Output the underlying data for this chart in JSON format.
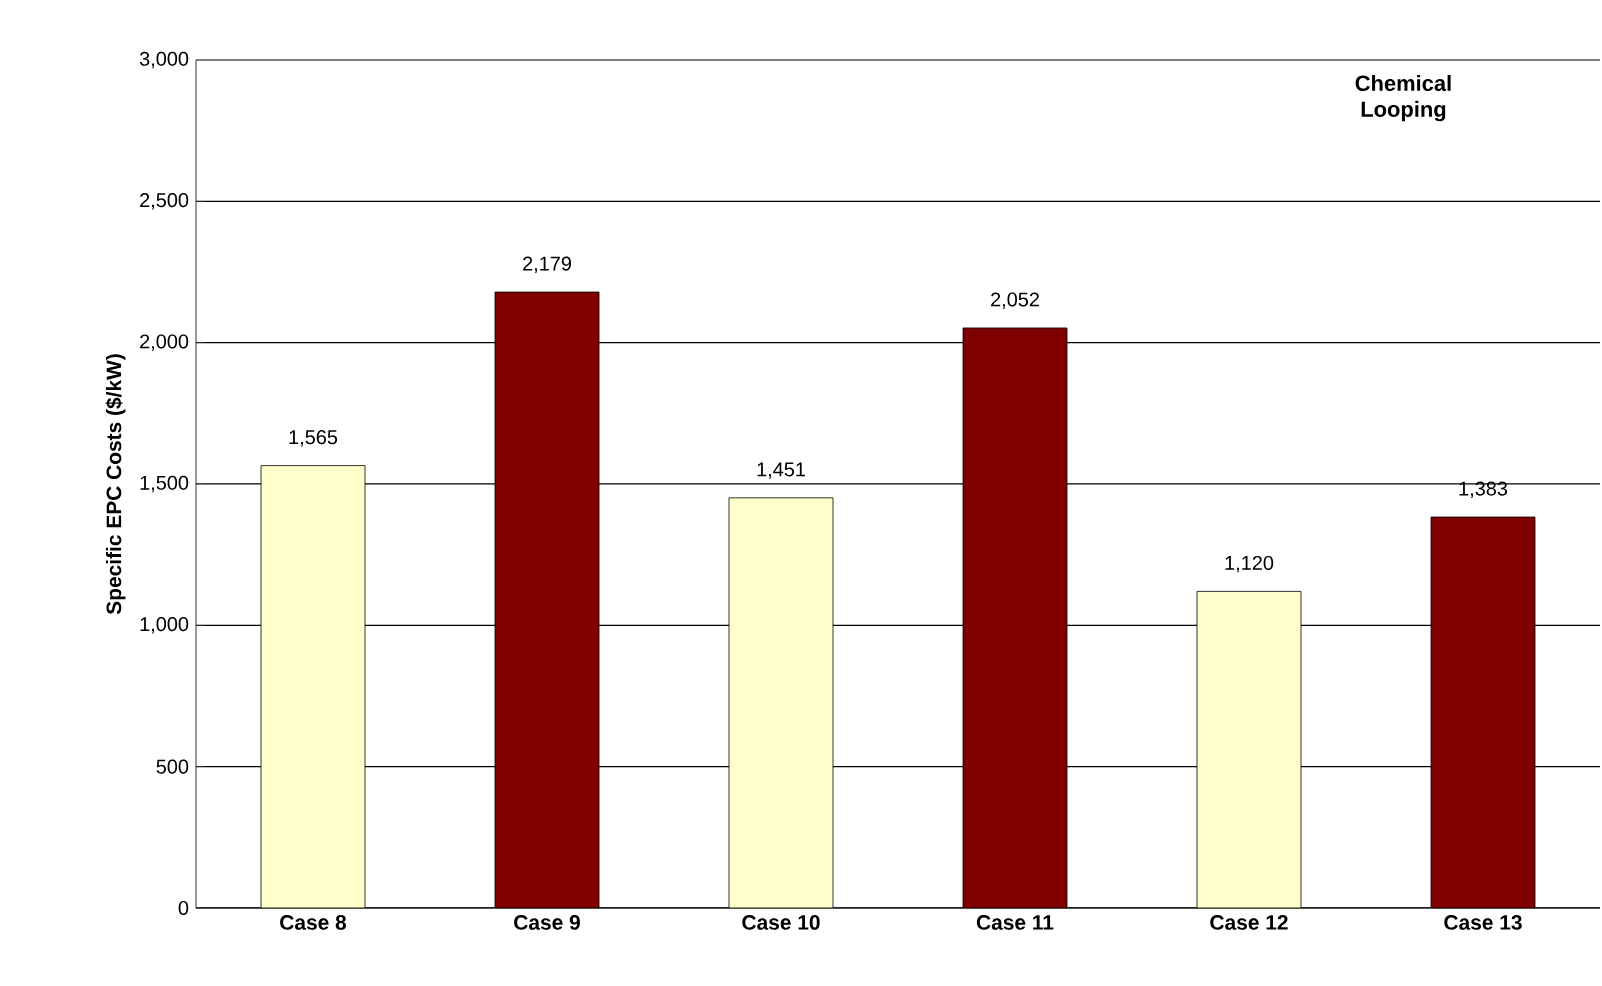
{
  "chart_data": {
    "type": "bar",
    "ylabel": "Specific EPC Costs ($/kW)",
    "categories": [
      "Case 8",
      "Case 9",
      "Case 10",
      "Case 11",
      "Case 12",
      "Case 13"
    ],
    "values": [
      1565,
      2179,
      1451,
      2052,
      1120,
      1383
    ],
    "value_labels": [
      "1,565",
      "2,179",
      "1,451",
      "2,052",
      "1,120",
      "1,383"
    ],
    "colors": [
      "#ffffcc",
      "#800000",
      "#ffffcc",
      "#800000",
      "#ffffcc",
      "#800000"
    ],
    "ylim": [
      0,
      3000
    ],
    "yticks": [
      0,
      500,
      {
        "value": 1000,
        "label": "1,000"
      },
      {
        "value": 1500,
        "label": "1,500"
      },
      {
        "value": 2000,
        "label": "2,000"
      },
      {
        "value": 2500,
        "label": "2,500"
      },
      {
        "value": 3000,
        "label": "3,000"
      }
    ],
    "grid": "y",
    "annotations": [
      "Chemical Looping"
    ]
  }
}
